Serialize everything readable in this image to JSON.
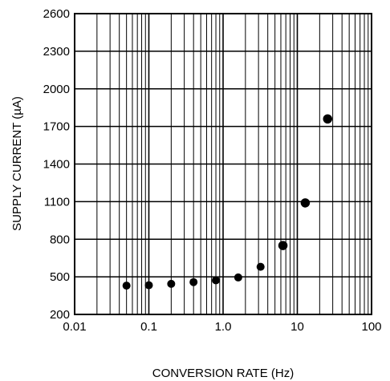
{
  "chart_data": {
    "type": "scatter",
    "title": "",
    "xlabel": "CONVERSION RATE (Hz)",
    "ylabel": "SUPPLY CURRENT (µA)",
    "x_scale": "log",
    "xlim": [
      0.01,
      100
    ],
    "ylim": [
      200,
      2600
    ],
    "x_tick_labels": [
      "0.01",
      "0.1",
      "1.0",
      "10",
      "100"
    ],
    "y_tick_labels": [
      "2600",
      "2300",
      "2000",
      "1700",
      "1400",
      "1100",
      "800",
      "500",
      "200"
    ],
    "grid": true,
    "series": [
      {
        "x": [
          0.05,
          0.1,
          0.2,
          0.4,
          0.8,
          1.6,
          3.2,
          6.4,
          12.8,
          25.6
        ],
        "y": [
          430,
          433,
          444,
          458,
          472,
          495,
          580,
          750,
          1090,
          1760
        ],
        "marker_size": [
          1,
          1,
          1,
          1,
          1,
          1,
          1,
          1.15,
          1.15,
          1.15
        ]
      }
    ]
  }
}
